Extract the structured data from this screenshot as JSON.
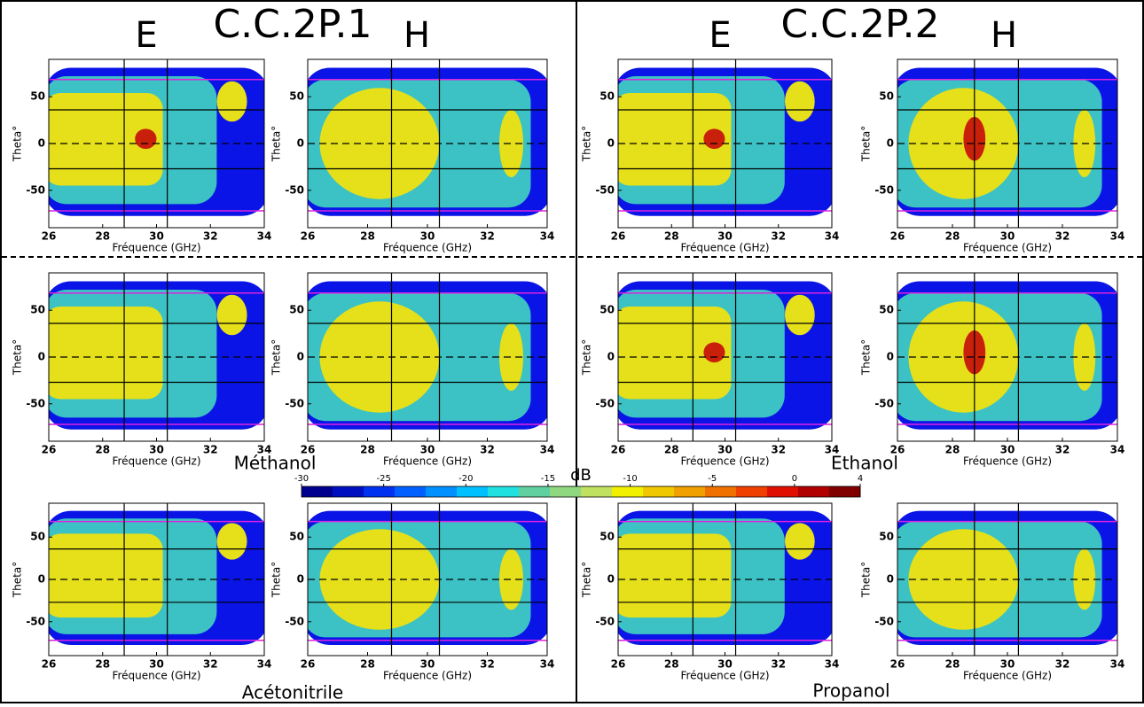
{
  "groups": [
    {
      "title": "C.C.2P.1",
      "columns": [
        "E",
        "H"
      ]
    },
    {
      "title": "C.C.2P.2",
      "columns": [
        "E",
        "H"
      ]
    }
  ],
  "solvents": [
    "Méthanol",
    "Ethanol",
    "Acétonitrile",
    "Propanol"
  ],
  "panel_axes": {
    "xlabel": "Fréquence (GHz)",
    "ylabel": "Theta°",
    "xlim": [
      26,
      34
    ],
    "xticks": [
      26,
      28,
      30,
      32,
      34
    ],
    "ylim": [
      -90,
      90
    ],
    "yticks": [
      50,
      0,
      -50
    ]
  },
  "colorbar": {
    "label": "dB",
    "lim": [
      -30,
      4
    ],
    "ticks": [
      -30,
      -25,
      -20,
      -15,
      -10,
      -5,
      0,
      4
    ]
  }
}
